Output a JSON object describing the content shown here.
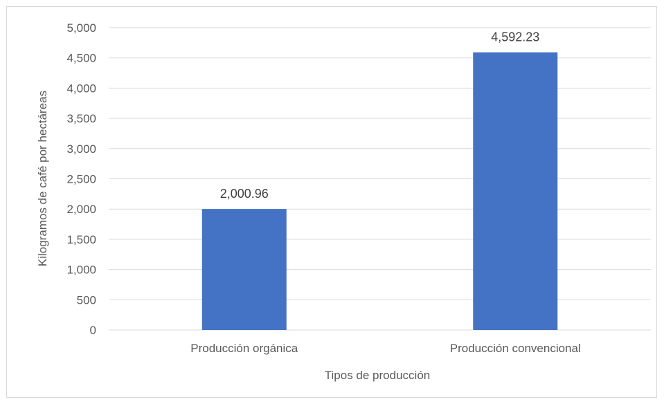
{
  "chart_data": {
    "type": "bar",
    "title": "",
    "categories": [
      "Producción orgánica",
      "Producción convencional"
    ],
    "values": [
      2000.96,
      4592.23
    ],
    "value_labels": [
      "2,000.96",
      "4,592.23"
    ],
    "xlabel": "Tipos de producción",
    "ylabel": "Kilogramos de café por hectáreas",
    "ylim": [
      0,
      5000
    ],
    "yticks": [
      0,
      500,
      1000,
      1500,
      2000,
      2500,
      3000,
      3500,
      4000,
      4500,
      5000
    ],
    "ytick_labels": [
      "0",
      "500",
      "1,000",
      "1,500",
      "2,000",
      "2,500",
      "3,000",
      "3,500",
      "4,000",
      "4,500",
      "5,000"
    ],
    "grid": true,
    "legend": "none",
    "bar_color": "#4472c4",
    "grid_color": "#d9d9d9"
  }
}
